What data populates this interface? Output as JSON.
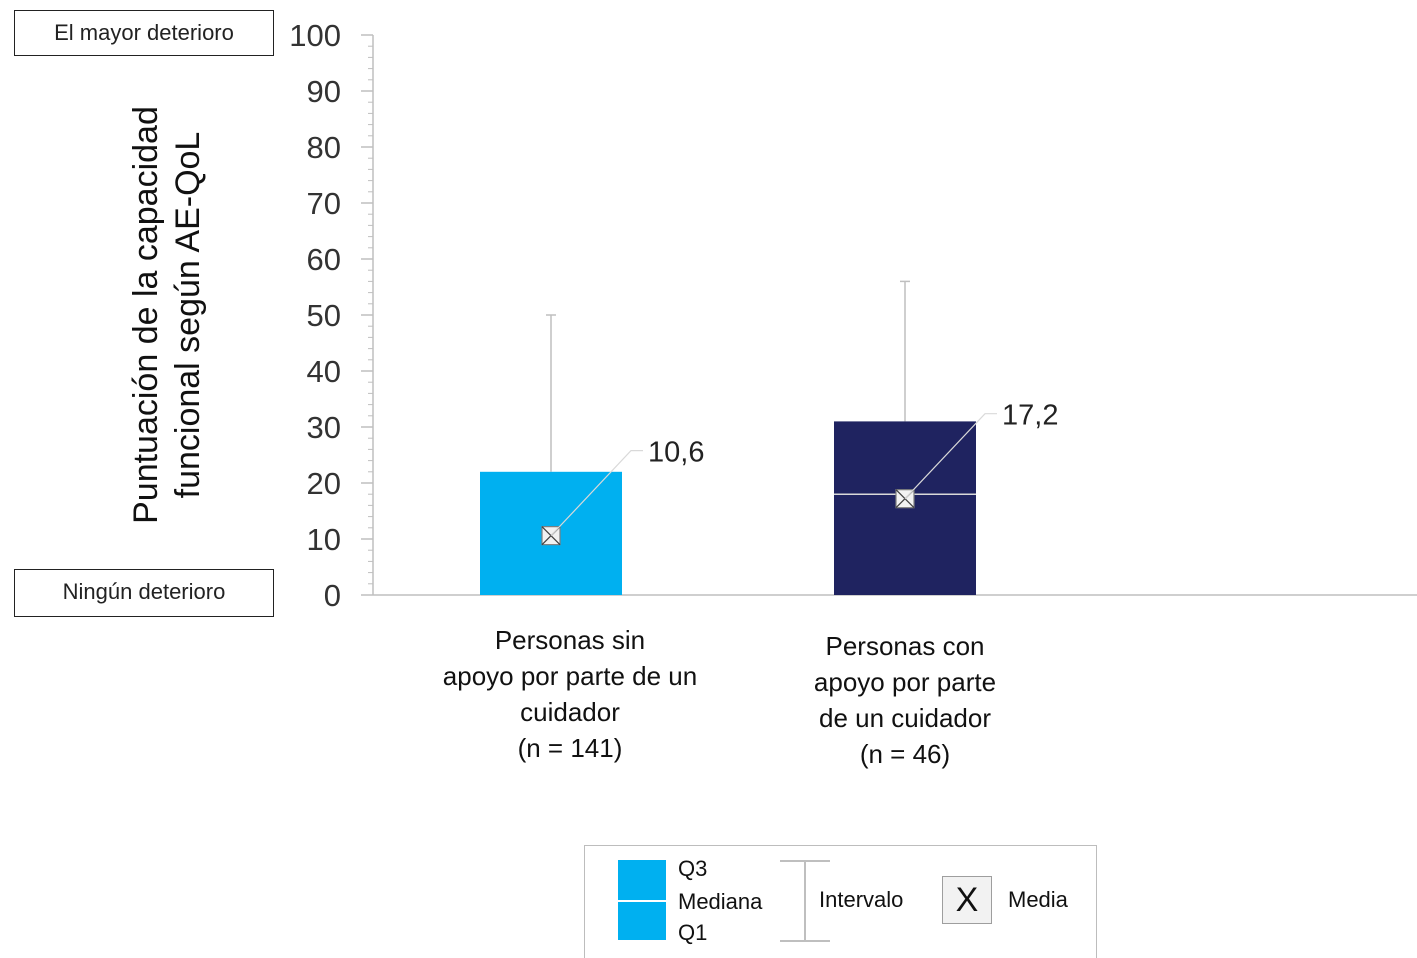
{
  "notes": {
    "top": "El mayor deterioro",
    "bottom": "Ningún deterioro"
  },
  "colors": {
    "series1": "#00b0f0",
    "series2": "#1f2360",
    "axis": "#bfbfbf",
    "whisker": "#bfbfbf",
    "text": "#222222"
  },
  "chart_data": {
    "type": "box",
    "ylabel_lines": [
      "Puntuación de la capacidad",
      "funcional según AE-QoL"
    ],
    "ylim": [
      0,
      100
    ],
    "yticks": [
      "0",
      "10",
      "20",
      "30",
      "40",
      "50",
      "60",
      "70",
      "80",
      "90",
      "100"
    ],
    "series": [
      {
        "category_lines": [
          "Personas sin",
          "apoyo por parte de un",
          "cuidador",
          "(n = 141)"
        ],
        "color": "#00b0f0",
        "min": 0,
        "q1": 0,
        "median": 0,
        "q3": 22,
        "max": 50,
        "mean": 10.6,
        "mean_label": "10,6"
      },
      {
        "category_lines": [
          "Personas con",
          "apoyo por parte",
          "de un cuidador",
          "(n = 46)"
        ],
        "color": "#1f2360",
        "min": 0,
        "q1": 0,
        "median": 18,
        "q3": 31,
        "max": 56,
        "mean": 17.2,
        "mean_label": "17,2"
      }
    ]
  },
  "legend": {
    "q3": "Q3",
    "median": "Mediana",
    "q1": "Q1",
    "interval": "Intervalo",
    "mean_symbol": "X",
    "mean": "Media"
  }
}
